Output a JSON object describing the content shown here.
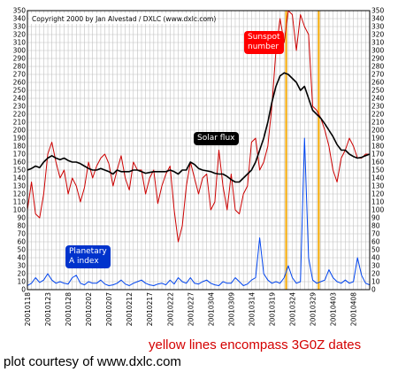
{
  "chart_data": {
    "type": "line",
    "title": "Copyright 2000 by Jan Alvestad / DXLC (www.dxlc.com)",
    "ylim": [
      0,
      350
    ],
    "yticks": [
      0,
      10,
      20,
      30,
      40,
      50,
      60,
      70,
      80,
      90,
      100,
      110,
      120,
      130,
      140,
      150,
      160,
      170,
      180,
      190,
      200,
      210,
      220,
      230,
      240,
      250,
      260,
      270,
      280,
      290,
      300,
      310,
      320,
      330,
      340,
      350
    ],
    "x_tick_labels": [
      "20010118",
      "20010123",
      "20010128",
      "20010202",
      "20010207",
      "20010212",
      "20010217",
      "20010222",
      "20010227",
      "20010304",
      "20010309",
      "20010314",
      "20010319",
      "20010324",
      "20010329",
      "20010403",
      "20010408"
    ],
    "x_range_days": [
      0,
      84
    ],
    "x_day_step": 5,
    "grid": true,
    "yellow_line_days": [
      63.5,
      71.5
    ],
    "series": [
      {
        "name": "Sunspot number",
        "color": "#cc0000",
        "x": [
          0,
          1,
          2,
          3,
          4,
          5,
          6,
          7,
          8,
          9,
          10,
          11,
          12,
          13,
          14,
          15,
          16,
          17,
          18,
          19,
          20,
          21,
          22,
          23,
          24,
          25,
          26,
          27,
          28,
          29,
          30,
          31,
          32,
          33,
          34,
          35,
          36,
          37,
          38,
          39,
          40,
          41,
          42,
          43,
          44,
          45,
          46,
          47,
          48,
          49,
          50,
          51,
          52,
          53,
          54,
          55,
          56,
          57,
          58,
          59,
          60,
          61,
          62,
          63,
          64,
          65,
          66,
          67,
          68,
          69,
          70,
          71,
          72,
          73,
          74,
          75,
          76,
          77,
          78,
          79,
          80,
          81,
          82,
          83,
          84
        ],
        "values": [
          100,
          135,
          95,
          90,
          120,
          170,
          185,
          160,
          140,
          150,
          120,
          140,
          130,
          110,
          128,
          160,
          140,
          155,
          165,
          170,
          158,
          130,
          150,
          168,
          140,
          125,
          160,
          150,
          150,
          120,
          140,
          150,
          108,
          130,
          145,
          155,
          100,
          60,
          80,
          130,
          160,
          140,
          120,
          140,
          145,
          100,
          110,
          175,
          130,
          100,
          145,
          100,
          95,
          120,
          130,
          185,
          190,
          150,
          160,
          180,
          230,
          300,
          340,
          310,
          350,
          345,
          300,
          345,
          330,
          320,
          230,
          225,
          215,
          200,
          180,
          150,
          135,
          165,
          175,
          190,
          180,
          165,
          165,
          170,
          170
        ]
      },
      {
        "name": "Solar flux",
        "color": "#000000",
        "x": [
          0,
          1,
          2,
          3,
          4,
          5,
          6,
          7,
          8,
          9,
          10,
          11,
          12,
          13,
          14,
          15,
          16,
          17,
          18,
          19,
          20,
          21,
          22,
          23,
          24,
          25,
          26,
          27,
          28,
          29,
          30,
          31,
          32,
          33,
          34,
          35,
          36,
          37,
          38,
          39,
          40,
          41,
          42,
          43,
          44,
          45,
          46,
          47,
          48,
          49,
          50,
          51,
          52,
          53,
          54,
          55,
          56,
          57,
          58,
          59,
          60,
          61,
          62,
          63,
          64,
          65,
          66,
          67,
          68,
          69,
          70,
          71,
          72,
          73,
          74,
          75,
          76,
          77,
          78,
          79,
          80,
          81,
          82,
          83,
          84
        ],
        "values": [
          150,
          152,
          155,
          153,
          160,
          165,
          168,
          165,
          163,
          165,
          162,
          160,
          160,
          158,
          155,
          152,
          150,
          150,
          152,
          150,
          148,
          145,
          150,
          148,
          148,
          148,
          150,
          150,
          148,
          146,
          147,
          148,
          148,
          148,
          148,
          150,
          148,
          145,
          150,
          150,
          160,
          157,
          152,
          150,
          149,
          148,
          146,
          145,
          145,
          142,
          138,
          135,
          135,
          140,
          145,
          150,
          160,
          175,
          190,
          210,
          235,
          255,
          268,
          272,
          270,
          265,
          260,
          250,
          255,
          240,
          225,
          220,
          215,
          208,
          200,
          192,
          182,
          175,
          175,
          170,
          167,
          165,
          166,
          168,
          170
        ]
      },
      {
        "name": "Planetary A index",
        "color": "#0044ee",
        "x": [
          0,
          1,
          2,
          3,
          4,
          5,
          6,
          7,
          8,
          9,
          10,
          11,
          12,
          13,
          14,
          15,
          16,
          17,
          18,
          19,
          20,
          21,
          22,
          23,
          24,
          25,
          26,
          27,
          28,
          29,
          30,
          31,
          32,
          33,
          34,
          35,
          36,
          37,
          38,
          39,
          40,
          41,
          42,
          43,
          44,
          45,
          46,
          47,
          48,
          49,
          50,
          51,
          52,
          53,
          54,
          55,
          56,
          57,
          58,
          59,
          60,
          61,
          62,
          63,
          64,
          65,
          66,
          67,
          68,
          69,
          70,
          71,
          72,
          73,
          74,
          75,
          76,
          77,
          78,
          79,
          80,
          81,
          82,
          83,
          84
        ],
        "values": [
          5,
          8,
          15,
          9,
          12,
          20,
          12,
          8,
          10,
          8,
          7,
          15,
          18,
          8,
          6,
          10,
          8,
          8,
          12,
          7,
          5,
          6,
          8,
          12,
          7,
          5,
          8,
          10,
          12,
          8,
          6,
          5,
          7,
          8,
          6,
          12,
          7,
          15,
          10,
          8,
          15,
          8,
          7,
          10,
          12,
          8,
          6,
          5,
          10,
          8,
          8,
          15,
          10,
          5,
          7,
          12,
          15,
          65,
          20,
          12,
          8,
          10,
          8,
          15,
          30,
          15,
          8,
          10,
          190,
          40,
          12,
          8,
          10,
          12,
          25,
          15,
          10,
          8,
          12,
          8,
          10,
          40,
          18,
          8,
          6
        ]
      }
    ]
  },
  "labels": {
    "sunspot": "Sunspot\nnumber",
    "solar_flux": "Solar flux",
    "a_index": "Planetary\nA index"
  },
  "captions": {
    "yellow": "yellow lines encompass 3G0Z dates",
    "credit": "plot courtesy of www.dxlc.com"
  },
  "colors": {
    "yellow_line": "#f5a800",
    "grid": "#c0c0c0",
    "sunspot_box": "#ff0000",
    "flux_box": "#000000",
    "a_box": "#0033cc"
  }
}
